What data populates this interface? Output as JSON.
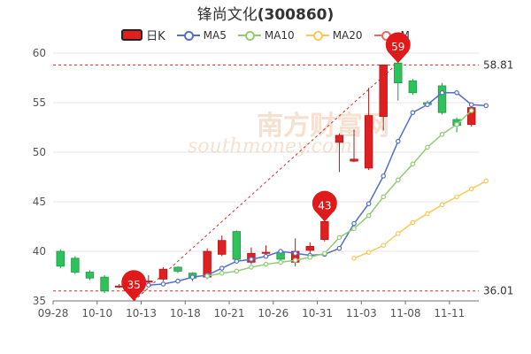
{
  "title": {
    "name": "锋尚文化",
    "code": "(300860)"
  },
  "legend": [
    {
      "key": "k",
      "label": "日K",
      "color": "#e02020"
    },
    {
      "key": "ma5",
      "label": "MA5",
      "color": "#5470c6"
    },
    {
      "key": "ma10",
      "label": "MA10",
      "color": "#91cc75"
    },
    {
      "key": "ma20",
      "label": "MA20",
      "color": "#fac858"
    },
    {
      "key": "ma30",
      "label": "M",
      "color": "#ee6666"
    }
  ],
  "watermark": {
    "cn": "南方财富网",
    "en": "southmoney.com"
  },
  "chart_data": {
    "type": "candlestick",
    "ylim": [
      35,
      60
    ],
    "y_ticks": [
      35,
      40,
      45,
      50,
      55,
      60
    ],
    "x_tick_labels": [
      "09-28",
      "10-10",
      "10-13",
      "10-18",
      "10-21",
      "10-26",
      "10-31",
      "11-03",
      "11-08",
      "11-11"
    ],
    "x_tick_indices": [
      0,
      3,
      6,
      9,
      12,
      15,
      18,
      21,
      24,
      27
    ],
    "up_color": "#e02020",
    "down_color": "#2ec25a",
    "candles": [
      {
        "o": 40.0,
        "c": 38.5,
        "h": 40.2,
        "l": 38.3
      },
      {
        "o": 39.3,
        "c": 37.9,
        "h": 39.5,
        "l": 37.7
      },
      {
        "o": 37.9,
        "c": 37.3,
        "h": 38.1,
        "l": 37.1
      },
      {
        "o": 37.4,
        "c": 36.0,
        "h": 37.6,
        "l": 35.8
      },
      {
        "o": 36.5,
        "c": 36.5,
        "h": 36.7,
        "l": 36.3
      },
      {
        "o": 36.5,
        "c": 36.9,
        "h": 37.0,
        "l": 35.0
      },
      {
        "o": 37.0,
        "c": 37.0,
        "h": 37.6,
        "l": 36.8
      },
      {
        "o": 37.2,
        "c": 38.2,
        "h": 38.4,
        "l": 37.0
      },
      {
        "o": 38.4,
        "c": 38.0,
        "h": 38.5,
        "l": 37.8
      },
      {
        "o": 37.8,
        "c": 37.3,
        "h": 37.9,
        "l": 37.0
      },
      {
        "o": 37.4,
        "c": 40.0,
        "h": 40.3,
        "l": 37.2
      },
      {
        "o": 39.7,
        "c": 41.1,
        "h": 41.6,
        "l": 39.5
      },
      {
        "o": 42.0,
        "c": 39.2,
        "h": 42.1,
        "l": 39.0
      },
      {
        "o": 38.9,
        "c": 39.8,
        "h": 40.4,
        "l": 38.7
      },
      {
        "o": 39.8,
        "c": 39.9,
        "h": 40.6,
        "l": 39.6
      },
      {
        "o": 39.9,
        "c": 39.2,
        "h": 40.2,
        "l": 38.8
      },
      {
        "o": 38.9,
        "c": 40.0,
        "h": 41.3,
        "l": 38.5
      },
      {
        "o": 40.1,
        "c": 40.5,
        "h": 40.9,
        "l": 39.5
      },
      {
        "o": 41.2,
        "c": 43.0,
        "h": 43.3,
        "l": 41.0
      },
      {
        "o": 51.0,
        "c": 51.7,
        "h": 51.9,
        "l": 48.0
      },
      {
        "o": 49.1,
        "c": 49.3,
        "h": 52.3,
        "l": 49.0
      },
      {
        "o": 48.4,
        "c": 53.7,
        "h": 56.5,
        "l": 48.2
      },
      {
        "o": 53.6,
        "c": 58.81,
        "h": 58.81,
        "l": 52.2
      },
      {
        "o": 59.0,
        "c": 57.0,
        "h": 59.0,
        "l": 55.2
      },
      {
        "o": 57.2,
        "c": 56.0,
        "h": 57.4,
        "l": 55.8
      },
      {
        "o": 55.0,
        "c": 54.8,
        "h": 55.2,
        "l": 54.6
      },
      {
        "o": 56.7,
        "c": 54.0,
        "h": 57.0,
        "l": 53.8
      },
      {
        "o": 53.3,
        "c": 52.7,
        "h": 53.5,
        "l": 52.0
      },
      {
        "o": 52.8,
        "c": 54.5,
        "h": 55.0,
        "l": 52.6
      }
    ],
    "series": [
      {
        "name": "MA5",
        "color": "#5470c6",
        "start": 6,
        "values": [
          36.6,
          36.7,
          37.0,
          37.4,
          37.6,
          38.3,
          39.0,
          39.2,
          39.5,
          40.0,
          39.8,
          39.6,
          39.7,
          40.3,
          42.8,
          44.8,
          47.6,
          51.1,
          54.0,
          54.8,
          56.0,
          56.0,
          54.8,
          54.7
        ]
      },
      {
        "name": "MA10",
        "color": "#91cc75",
        "start": 10,
        "values": [
          37.5,
          37.8,
          38.0,
          38.4,
          38.7,
          38.9,
          39.1,
          39.4,
          39.8,
          41.4,
          42.3,
          43.6,
          45.5,
          47.2,
          48.8,
          50.5,
          51.8,
          52.8,
          54.2
        ]
      },
      {
        "name": "MA20",
        "color": "#fac858",
        "start": 20,
        "values": [
          39.3,
          39.9,
          40.6,
          41.8,
          42.9,
          43.8,
          44.7,
          45.5,
          46.3,
          47.1
        ]
      }
    ],
    "markers": [
      {
        "label": "35",
        "value": 35.0,
        "index": 5
      },
      {
        "label": "43",
        "value": 43.0,
        "index": 18
      },
      {
        "label": "59",
        "value": 59.0,
        "index": 23
      }
    ],
    "ref_lines": [
      {
        "value": 58.81,
        "label": "58.81"
      },
      {
        "value": 36.01,
        "label": "36.01"
      }
    ],
    "trend_line": {
      "from_index": 5,
      "from_value": 35.0,
      "to_index": 23,
      "to_value": 59.0
    }
  }
}
